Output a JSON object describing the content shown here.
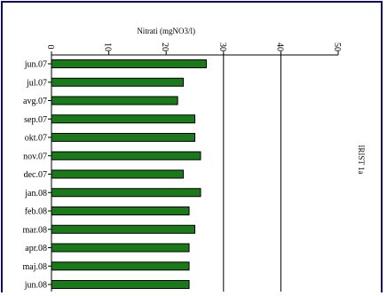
{
  "chart_data": {
    "type": "bar",
    "orientation": "horizontal",
    "title": "",
    "xlabel": "Nitrati (mgNO3/l)",
    "ylabel": "",
    "series_label": "IRIST 1a",
    "categories": [
      "jun.07",
      "jul.07",
      "avg.07",
      "sep.07",
      "okt.07",
      "nov.07",
      "dec.07",
      "jan.08",
      "feb.08",
      "mar.08",
      "apr.08",
      "maj.08",
      "jun.08"
    ],
    "values": [
      27,
      23,
      22,
      25,
      25,
      26,
      23,
      26,
      24,
      25,
      24,
      24,
      24
    ],
    "xlim": [
      0,
      50
    ],
    "xticks": [
      0,
      10,
      20,
      30,
      40,
      50
    ],
    "gridlines": [
      30,
      40
    ],
    "bar_color": "#1a7a1a",
    "axis_color": "#000000",
    "frame_color": "#0a0a7a"
  }
}
